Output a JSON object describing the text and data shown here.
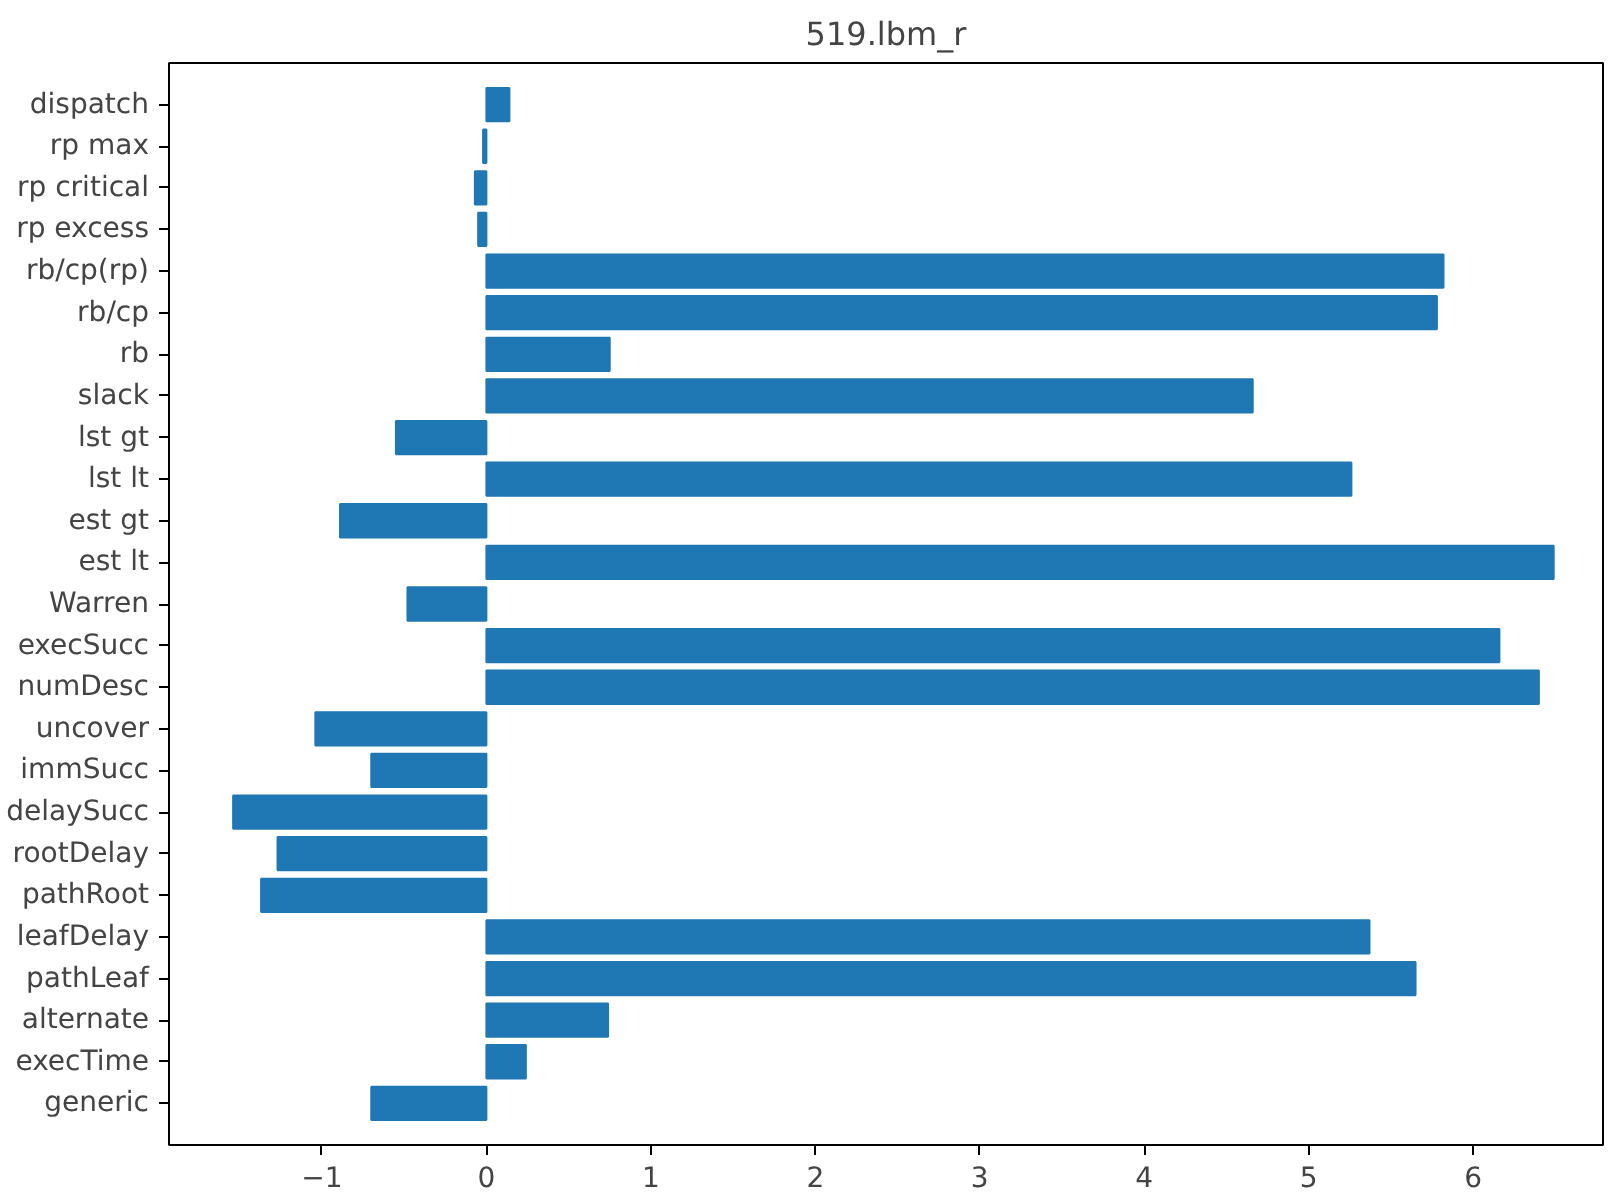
{
  "chart_data": {
    "type": "bar",
    "orientation": "horizontal",
    "title": "519.lbm_r",
    "categories": [
      "dispatch",
      "rp max",
      "rp critical",
      "rp excess",
      "rb/cp(rp)",
      "rb/cp",
      "rb",
      "slack",
      "lst gt",
      "lst lt",
      "est gt",
      "est lt",
      "Warren",
      "execSucc",
      "numDesc",
      "uncover",
      "immSucc",
      "delaySucc",
      "rootDelay",
      "pathRoot",
      "leafDelay",
      "pathLeaf",
      "alternate",
      "execTime",
      "generic"
    ],
    "values": [
      0.14,
      -0.02,
      -0.07,
      -0.05,
      5.82,
      5.78,
      0.75,
      4.66,
      -0.55,
      5.26,
      -0.89,
      6.49,
      -0.48,
      6.16,
      6.4,
      -1.04,
      -0.7,
      -1.54,
      -1.27,
      -1.37,
      5.37,
      5.65,
      0.74,
      0.24,
      -0.7
    ],
    "color": "#1f77b4",
    "xlim": [
      -1.93,
      6.79
    ],
    "xticks": [
      {
        "value": -1,
        "label": "−1"
      },
      0,
      1,
      2,
      3,
      4,
      5,
      6
    ],
    "grid": false
  }
}
